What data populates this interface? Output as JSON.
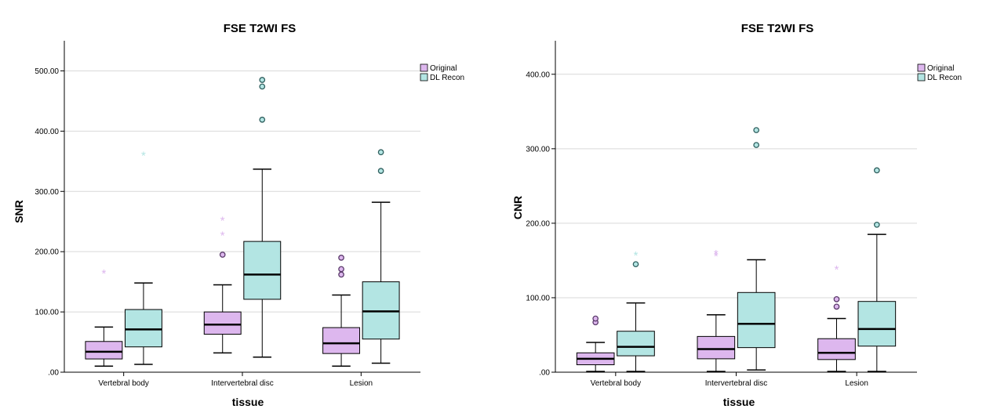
{
  "chart_data": [
    {
      "type": "boxplot",
      "title": "FSE T2WI FS",
      "xlabel": "tissue",
      "ylabel": "SNR",
      "categories": [
        "Vertebral body",
        "Intervertebral disc",
        "Lesion"
      ],
      "ylim": [
        0,
        550
      ],
      "yticks": [
        0,
        100,
        200,
        300,
        400,
        500
      ],
      "ytick_labels": [
        ".00",
        "100.00",
        "200.00",
        "300.00",
        "400.00",
        "500.00"
      ],
      "grid": true,
      "legend_position": "top-right",
      "colors": {
        "Original": "#ddb7ee",
        "DL Recon": "#b3e5e3"
      },
      "series": [
        {
          "name": "Original",
          "boxes": [
            {
              "min": 10,
              "q1": 22,
              "median": 34,
              "q3": 51,
              "max": 75,
              "outliers": [],
              "extremes": [
                165
              ]
            },
            {
              "min": 32,
              "q1": 63,
              "median": 79,
              "q3": 100,
              "max": 145,
              "outliers": [
                195
              ],
              "extremes": [
                228,
                253
              ]
            },
            {
              "min": 10,
              "q1": 31,
              "median": 48,
              "q3": 74,
              "max": 128,
              "outliers": [
                162,
                171,
                190
              ],
              "extremes": []
            }
          ]
        },
        {
          "name": "DL Recon",
          "boxes": [
            {
              "min": 13,
              "q1": 42,
              "median": 71,
              "q3": 104,
              "max": 148,
              "outliers": [],
              "extremes": [
                361
              ]
            },
            {
              "min": 25,
              "q1": 121,
              "median": 162,
              "q3": 217,
              "max": 337,
              "outliers": [
                419,
                474,
                485
              ],
              "extremes": []
            },
            {
              "min": 15,
              "q1": 55,
              "median": 101,
              "q3": 150,
              "max": 282,
              "outliers": [
                334,
                365
              ],
              "extremes": []
            }
          ]
        }
      ]
    },
    {
      "type": "boxplot",
      "title": "FSE T2WI FS",
      "xlabel": "tissue",
      "ylabel": "CNR",
      "categories": [
        "Vertebral body",
        "Intervertebral disc",
        "Lesion"
      ],
      "ylim": [
        0,
        445
      ],
      "yticks": [
        0,
        100,
        200,
        300,
        400
      ],
      "ytick_labels": [
        ".00",
        "100.00",
        "200.00",
        "300.00",
        "400.00"
      ],
      "grid": true,
      "legend_position": "top-right",
      "colors": {
        "Original": "#ddb7ee",
        "DL Recon": "#b3e5e3"
      },
      "series": [
        {
          "name": "Original",
          "boxes": [
            {
              "min": 1,
              "q1": 10,
              "median": 18,
              "q3": 26,
              "max": 40,
              "outliers": [
                67,
                72
              ],
              "extremes": []
            },
            {
              "min": 1,
              "q1": 18,
              "median": 31,
              "q3": 48,
              "max": 77,
              "outliers": [],
              "extremes": [
                157,
                160
              ]
            },
            {
              "min": 1,
              "q1": 17,
              "median": 26,
              "q3": 45,
              "max": 72,
              "outliers": [
                88,
                98
              ],
              "extremes": [
                139
              ]
            }
          ]
        },
        {
          "name": "DL Recon",
          "boxes": [
            {
              "min": 1,
              "q1": 22,
              "median": 34,
              "q3": 55,
              "max": 93,
              "outliers": [
                145
              ],
              "extremes": [
                158
              ]
            },
            {
              "min": 3,
              "q1": 33,
              "median": 65,
              "q3": 107,
              "max": 151,
              "outliers": [
                305,
                325
              ],
              "extremes": []
            },
            {
              "min": 1,
              "q1": 35,
              "median": 58,
              "q3": 95,
              "max": 185,
              "outliers": [
                198,
                271
              ],
              "extremes": []
            }
          ]
        }
      ]
    }
  ]
}
